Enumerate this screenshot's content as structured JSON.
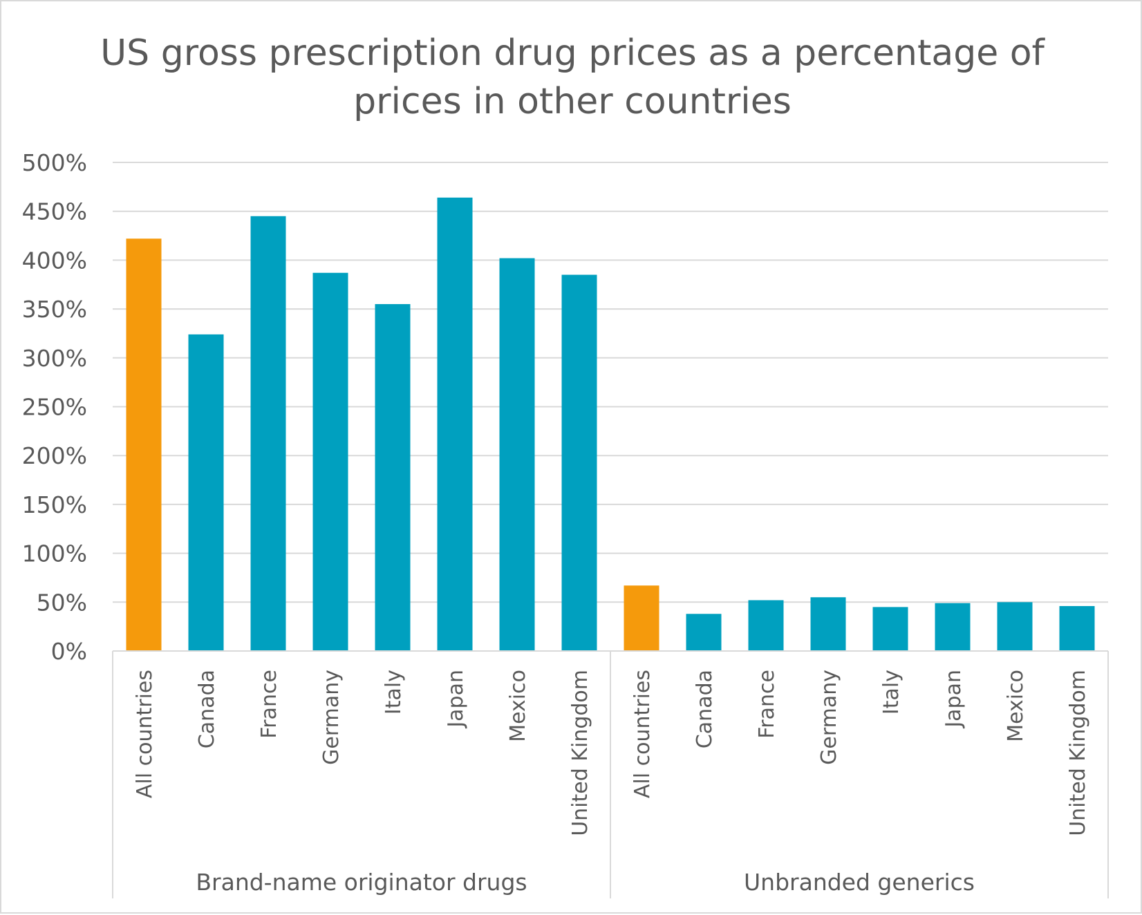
{
  "chart_data": {
    "type": "bar",
    "title": "US gross prescription drug prices as a percentage of prices in other countries",
    "title_lines": [
      "US gross prescription drug prices as a percentage of",
      "prices in other countries"
    ],
    "ylim": [
      0,
      500
    ],
    "yticks": [
      0,
      50,
      100,
      150,
      200,
      250,
      300,
      350,
      400,
      450,
      500
    ],
    "ytick_labels": [
      "0%",
      "50%",
      "100%",
      "150%",
      "200%",
      "250%",
      "300%",
      "350%",
      "400%",
      "450%",
      "500%"
    ],
    "grid": true,
    "legend": "none",
    "colors": {
      "highlight": "#f59a0c",
      "default": "#00a0bf",
      "grid": "#d9d9d9",
      "text": "#595959"
    },
    "groups": [
      {
        "label": "Brand-name originator drugs",
        "categories": [
          "All countries",
          "Canada",
          "France",
          "Germany",
          "Italy",
          "Japan",
          "Mexico",
          "United Kingdom"
        ],
        "values": [
          422,
          324,
          445,
          387,
          355,
          464,
          402,
          385
        ]
      },
      {
        "label": "Unbranded generics",
        "categories": [
          "All countries",
          "Canada",
          "France",
          "Germany",
          "Italy",
          "Japan",
          "Mexico",
          "United Kingdom"
        ],
        "values": [
          67,
          38,
          52,
          55,
          45,
          49,
          50,
          46
        ]
      }
    ],
    "highlight_category": "All countries"
  }
}
